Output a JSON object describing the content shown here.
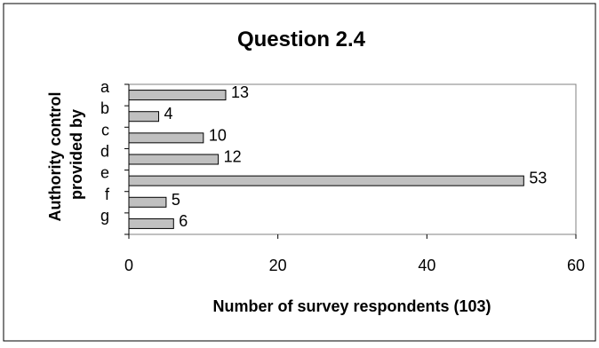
{
  "chart_data": {
    "type": "bar",
    "orientation": "horizontal",
    "title": "Question 2.4",
    "xlabel": "Number of survey respondents (103)",
    "ylabel": "Authority control provided by",
    "categories": [
      "a",
      "b",
      "c",
      "d",
      "e",
      "f",
      "g"
    ],
    "values": [
      13,
      4,
      10,
      12,
      53,
      5,
      6
    ],
    "xlim": [
      0,
      60
    ],
    "xticks": [
      "0",
      "20",
      "40",
      "60"
    ],
    "grid": false,
    "legend": "none",
    "bar_color": "#c0c0c0"
  }
}
